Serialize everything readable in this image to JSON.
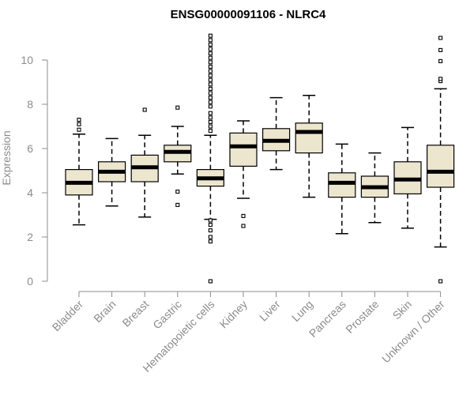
{
  "chart_data": {
    "type": "boxplot",
    "title": "ENSG00000091106 - NLRC4",
    "xlabel": "",
    "ylabel": "Expression",
    "ylim": [
      0,
      11
    ],
    "yticks": [
      0,
      2,
      4,
      6,
      8,
      10
    ],
    "categories": [
      "Bladder",
      "Brain",
      "Breast",
      "Gastric",
      "Hematopoietic cells",
      "Kidney",
      "Liver",
      "Lung",
      "Pancreas",
      "Prostate",
      "Skin",
      "Unknown / Other"
    ],
    "boxes": [
      {
        "name": "Bladder",
        "whisker_low": 2.55,
        "q1": 3.9,
        "median": 4.45,
        "q3": 5.05,
        "whisker_high": 6.65,
        "outliers": [
          6.85,
          7.1,
          7.3
        ]
      },
      {
        "name": "Brain",
        "whisker_low": 3.4,
        "q1": 4.5,
        "median": 4.95,
        "q3": 5.4,
        "whisker_high": 6.45,
        "outliers": []
      },
      {
        "name": "Breast",
        "whisker_low": 2.9,
        "q1": 4.5,
        "median": 5.15,
        "q3": 5.7,
        "whisker_high": 6.6,
        "outliers": [
          7.75
        ]
      },
      {
        "name": "Gastric",
        "whisker_low": 4.85,
        "q1": 5.4,
        "median": 5.85,
        "q3": 6.15,
        "whisker_high": 7.0,
        "outliers": [
          3.45,
          4.05,
          7.85
        ]
      },
      {
        "name": "Hematopoietic cells",
        "whisker_low": 2.8,
        "q1": 4.3,
        "median": 4.65,
        "q3": 5.05,
        "whisker_high": 6.6,
        "outliers": [
          0.0,
          1.8,
          2.0,
          2.3,
          2.55,
          2.75,
          6.8,
          7.0,
          7.2,
          7.4,
          7.6,
          7.9,
          8.1,
          8.3,
          8.5,
          8.7,
          8.9,
          9.1,
          9.3,
          9.5,
          9.7,
          9.9,
          10.1,
          10.3,
          10.5,
          10.7,
          10.9,
          11.1
        ]
      },
      {
        "name": "Kidney",
        "whisker_low": 3.75,
        "q1": 5.2,
        "median": 6.1,
        "q3": 6.7,
        "whisker_high": 7.25,
        "outliers": [
          2.5,
          2.95
        ]
      },
      {
        "name": "Liver",
        "whisker_low": 5.05,
        "q1": 5.9,
        "median": 6.35,
        "q3": 6.9,
        "whisker_high": 8.3,
        "outliers": []
      },
      {
        "name": "Lung",
        "whisker_low": 3.8,
        "q1": 5.8,
        "median": 6.75,
        "q3": 7.15,
        "whisker_high": 8.4,
        "outliers": []
      },
      {
        "name": "Pancreas",
        "whisker_low": 2.15,
        "q1": 3.8,
        "median": 4.45,
        "q3": 4.9,
        "whisker_high": 6.2,
        "outliers": []
      },
      {
        "name": "Prostate",
        "whisker_low": 2.65,
        "q1": 3.8,
        "median": 4.25,
        "q3": 4.75,
        "whisker_high": 5.8,
        "outliers": []
      },
      {
        "name": "Skin",
        "whisker_low": 2.4,
        "q1": 3.95,
        "median": 4.6,
        "q3": 5.4,
        "whisker_high": 6.95,
        "outliers": []
      },
      {
        "name": "Unknown / Other",
        "whisker_low": 1.55,
        "q1": 4.25,
        "median": 4.95,
        "q3": 6.15,
        "whisker_high": 8.7,
        "outliers": [
          0.0,
          9.05,
          9.15,
          9.95,
          10.45,
          11.0
        ]
      }
    ],
    "colors": {
      "box_fill": "#ede6cf",
      "box_stroke": "#000000",
      "axis": "#8c8c8c",
      "median": "#000000"
    }
  }
}
